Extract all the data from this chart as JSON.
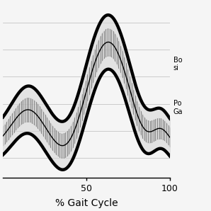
{
  "xlabel": "% Gait Cycle",
  "xticks": [
    50,
    100
  ],
  "xlim": [
    0,
    100
  ],
  "background_color": "#f0f0f0",
  "grid_color": "#bbbbbb",
  "xlabel_fontsize": 10,
  "tick_fontsize": 9,
  "legend_fontsize": 7,
  "band_lw": 3.2,
  "mean_lw": 1.0,
  "n_vbars": 90,
  "legend1": "Bo\nsi",
  "legend2": "Po\nGa"
}
